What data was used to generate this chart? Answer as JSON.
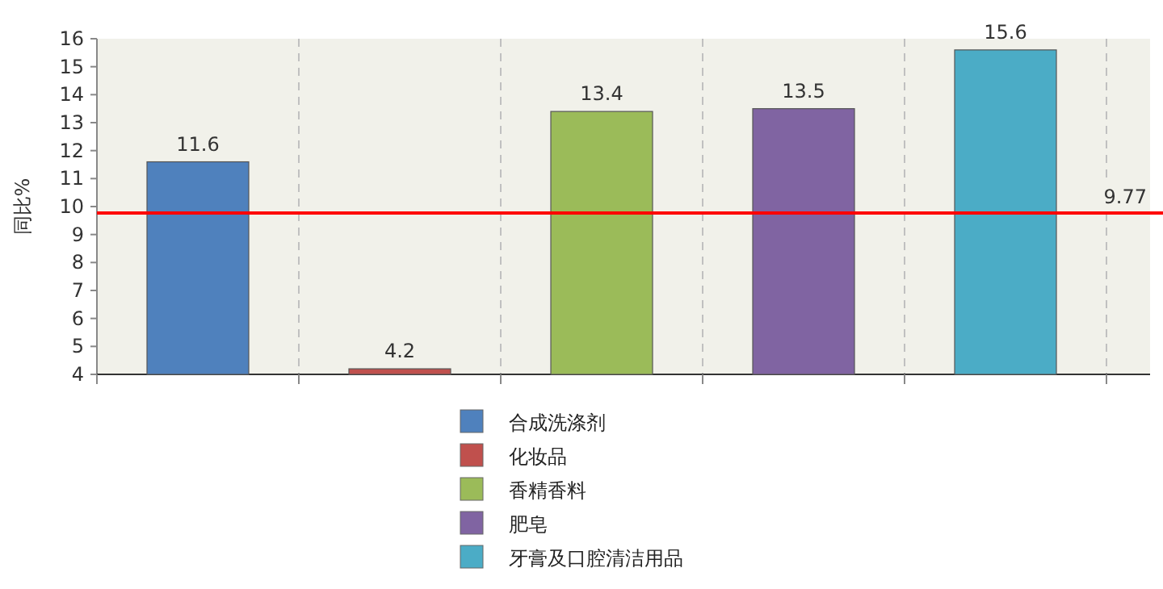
{
  "chart_data": {
    "type": "bar",
    "ylabel": "同比%",
    "categories": [
      null,
      null,
      null,
      null,
      null
    ],
    "series": [
      {
        "name": "合成洗涤剂",
        "color": "#4f81bd",
        "values": [
          11.6,
          null,
          null,
          null,
          null
        ]
      },
      {
        "name": "化妆品",
        "color": "#c0504d",
        "values": [
          null,
          4.2,
          null,
          null,
          null
        ]
      },
      {
        "name": "香精香料",
        "color": "#9bbb59",
        "values": [
          null,
          null,
          13.4,
          null,
          null
        ]
      },
      {
        "name": "肥皂",
        "color": "#8064a2",
        "values": [
          null,
          null,
          null,
          13.5,
          null
        ]
      },
      {
        "name": "牙膏及口腔清洁用品",
        "color": "#4bacc6",
        "values": [
          null,
          null,
          null,
          null,
          15.6
        ]
      }
    ],
    "ylim": [
      4,
      16
    ],
    "yticks": [
      4,
      5,
      6,
      7,
      8,
      9,
      10,
      11,
      12,
      13,
      14,
      15,
      16
    ],
    "ref_lines": [
      {
        "axis": "y",
        "value": 9.77,
        "label": "9.77",
        "color": "#ff0000"
      }
    ],
    "data_labels": true,
    "grid": "x",
    "legend": "bottom"
  }
}
